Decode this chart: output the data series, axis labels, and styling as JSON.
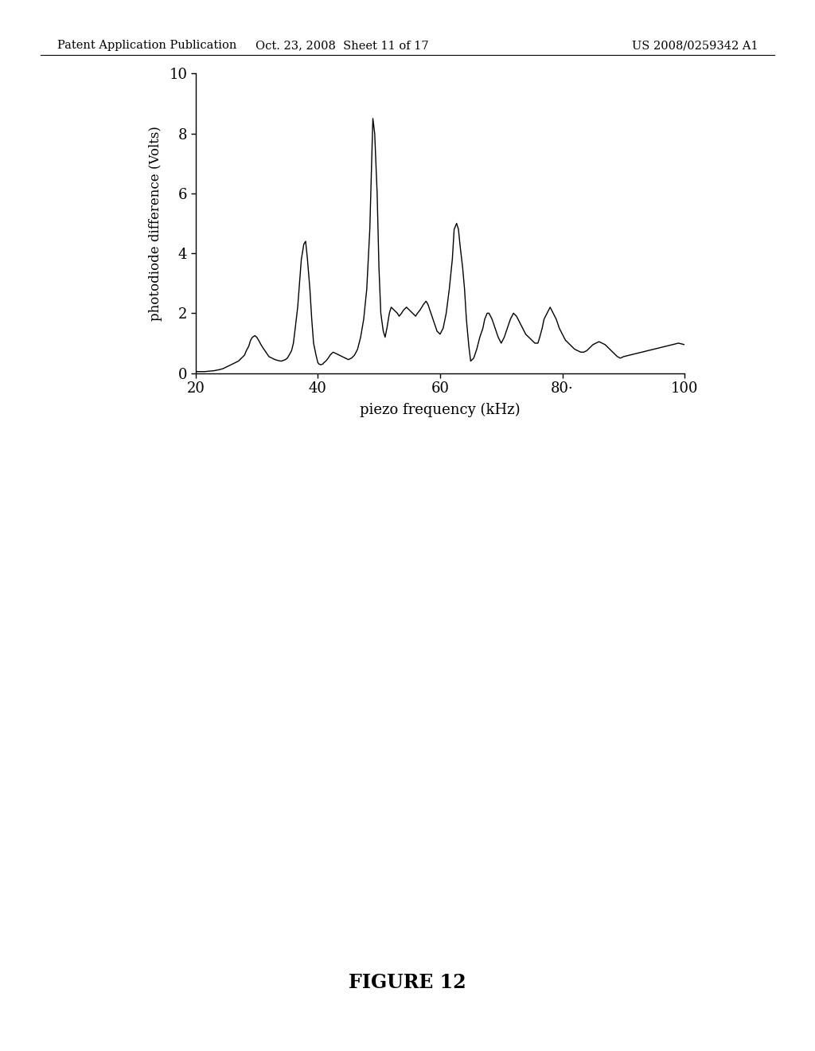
{
  "xlabel": "piezo frequency (kHz)",
  "ylabel": "photodiode difference (Volts)",
  "xlim": [
    20,
    100
  ],
  "ylim": [
    0,
    10
  ],
  "xticks": [
    20,
    40,
    60,
    80,
    100
  ],
  "yticks": [
    0,
    2,
    4,
    6,
    8,
    10
  ],
  "xtick_labels": [
    "20",
    "40",
    "60",
    "80·",
    "100"
  ],
  "figure_caption": "FIGURE 12",
  "header_left": "Patent Application Publication",
  "header_mid": "Oct. 23, 2008  Sheet 11 of 17",
  "header_right": "US 2008/0259342 A1",
  "line_color": "#000000",
  "bg_color": "#ffffff",
  "x_data": [
    20.0,
    20.3,
    20.7,
    21.0,
    21.5,
    22.0,
    22.5,
    23.0,
    23.5,
    24.0,
    24.5,
    25.0,
    25.5,
    26.0,
    26.5,
    27.0,
    27.5,
    28.0,
    28.3,
    28.7,
    29.0,
    29.3,
    29.7,
    30.0,
    30.3,
    30.7,
    31.0,
    31.5,
    32.0,
    32.5,
    33.0,
    33.5,
    34.0,
    34.3,
    34.7,
    35.0,
    35.3,
    35.7,
    36.0,
    36.3,
    36.7,
    37.0,
    37.3,
    37.7,
    38.0,
    38.3,
    38.7,
    39.0,
    39.3,
    39.7,
    40.0,
    40.2,
    40.5,
    40.8,
    41.0,
    41.3,
    41.7,
    42.0,
    42.5,
    43.0,
    43.5,
    44.0,
    44.5,
    45.0,
    45.5,
    46.0,
    46.5,
    47.0,
    47.5,
    48.0,
    48.5,
    49.0,
    49.3,
    49.7,
    50.0,
    50.3,
    50.7,
    51.0,
    51.3,
    51.7,
    52.0,
    52.5,
    53.0,
    53.3,
    53.7,
    54.0,
    54.5,
    55.0,
    55.5,
    56.0,
    56.3,
    56.7,
    57.0,
    57.3,
    57.7,
    58.0,
    58.5,
    59.0,
    59.5,
    60.0,
    60.5,
    61.0,
    61.5,
    62.0,
    62.3,
    62.7,
    63.0,
    63.3,
    63.7,
    64.0,
    64.3,
    64.7,
    65.0,
    65.5,
    66.0,
    66.5,
    67.0,
    67.3,
    67.7,
    68.0,
    68.5,
    69.0,
    69.5,
    70.0,
    70.5,
    71.0,
    71.5,
    72.0,
    72.5,
    73.0,
    73.5,
    74.0,
    74.5,
    75.0,
    75.5,
    76.0,
    76.3,
    76.7,
    77.0,
    77.5,
    78.0,
    78.5,
    79.0,
    79.5,
    80.0,
    80.5,
    81.0,
    81.5,
    82.0,
    82.5,
    83.0,
    83.5,
    84.0,
    84.5,
    85.0,
    85.5,
    86.0,
    86.5,
    87.0,
    87.5,
    88.0,
    88.5,
    89.0,
    89.5,
    90.0,
    91.0,
    92.0,
    93.0,
    94.0,
    95.0,
    96.0,
    97.0,
    98.0,
    99.0,
    100.0
  ],
  "y_data": [
    0.05,
    0.05,
    0.05,
    0.05,
    0.05,
    0.06,
    0.07,
    0.08,
    0.1,
    0.12,
    0.15,
    0.2,
    0.25,
    0.3,
    0.35,
    0.4,
    0.5,
    0.6,
    0.75,
    0.9,
    1.1,
    1.2,
    1.25,
    1.2,
    1.1,
    0.95,
    0.85,
    0.7,
    0.55,
    0.5,
    0.45,
    0.42,
    0.4,
    0.42,
    0.45,
    0.5,
    0.6,
    0.75,
    1.0,
    1.5,
    2.2,
    3.0,
    3.8,
    4.3,
    4.4,
    3.8,
    2.8,
    1.8,
    1.0,
    0.6,
    0.35,
    0.3,
    0.28,
    0.3,
    0.35,
    0.4,
    0.5,
    0.6,
    0.7,
    0.65,
    0.6,
    0.55,
    0.5,
    0.45,
    0.5,
    0.6,
    0.8,
    1.2,
    1.8,
    2.8,
    4.8,
    8.5,
    8.0,
    6.0,
    3.5,
    2.0,
    1.4,
    1.2,
    1.5,
    2.0,
    2.2,
    2.1,
    2.0,
    1.9,
    2.0,
    2.1,
    2.2,
    2.1,
    2.0,
    1.9,
    2.0,
    2.1,
    2.2,
    2.3,
    2.4,
    2.3,
    2.0,
    1.7,
    1.4,
    1.3,
    1.5,
    2.0,
    2.8,
    3.8,
    4.8,
    5.0,
    4.8,
    4.2,
    3.5,
    2.8,
    1.8,
    0.9,
    0.4,
    0.5,
    0.8,
    1.2,
    1.5,
    1.8,
    2.0,
    2.0,
    1.8,
    1.5,
    1.2,
    1.0,
    1.2,
    1.5,
    1.8,
    2.0,
    1.9,
    1.7,
    1.5,
    1.3,
    1.2,
    1.1,
    1.0,
    1.0,
    1.2,
    1.5,
    1.8,
    2.0,
    2.2,
    2.0,
    1.8,
    1.5,
    1.3,
    1.1,
    1.0,
    0.9,
    0.8,
    0.75,
    0.7,
    0.7,
    0.75,
    0.85,
    0.95,
    1.0,
    1.05,
    1.0,
    0.95,
    0.85,
    0.75,
    0.65,
    0.55,
    0.5,
    0.55,
    0.6,
    0.65,
    0.7,
    0.75,
    0.8,
    0.85,
    0.9,
    0.95,
    1.0,
    0.95
  ]
}
